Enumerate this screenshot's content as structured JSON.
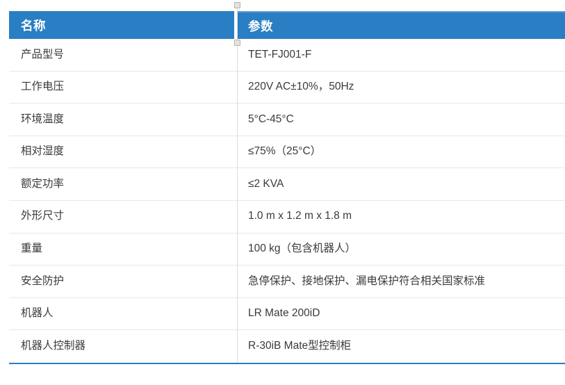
{
  "colors": {
    "header_bg": "#2A7EC3",
    "header_top_highlight": "#5B9FD4",
    "header_text": "#FFFFFF",
    "body_text": "#3A3A3A",
    "row_divider": "#E8E8E8",
    "column_divider": "#DCDCDC",
    "bottom_border": "#2E7CBE",
    "handle_fill": "#E6E2DC",
    "handle_border": "#B9B5AF"
  },
  "table": {
    "headers": [
      {
        "label": "名称"
      },
      {
        "label": "参数"
      }
    ],
    "rows": [
      {
        "name": "产品型号",
        "value": "TET-FJ001-F"
      },
      {
        "name": "工作电压",
        "value": "220V AC±10%，50Hz"
      },
      {
        "name": "环境温度",
        "value": "5°C-45°C"
      },
      {
        "name": "相对湿度",
        "value": "≤75%（25°C）"
      },
      {
        "name": "额定功率",
        "value": "≤2 KVA"
      },
      {
        "name": "外形尺寸",
        "value": "1.0 m x 1.2 m x 1.8 m"
      },
      {
        "name": "重量",
        "value": "100 kg（包含机器人）"
      },
      {
        "name": "安全防护",
        "value": "急停保护、接地保护、漏电保护符合相关国家标准"
      },
      {
        "name": "机器人",
        "value": "LR Mate 200iD"
      },
      {
        "name": "机器人控制器",
        "value": "R-30iB Mate型控制柜"
      }
    ]
  }
}
